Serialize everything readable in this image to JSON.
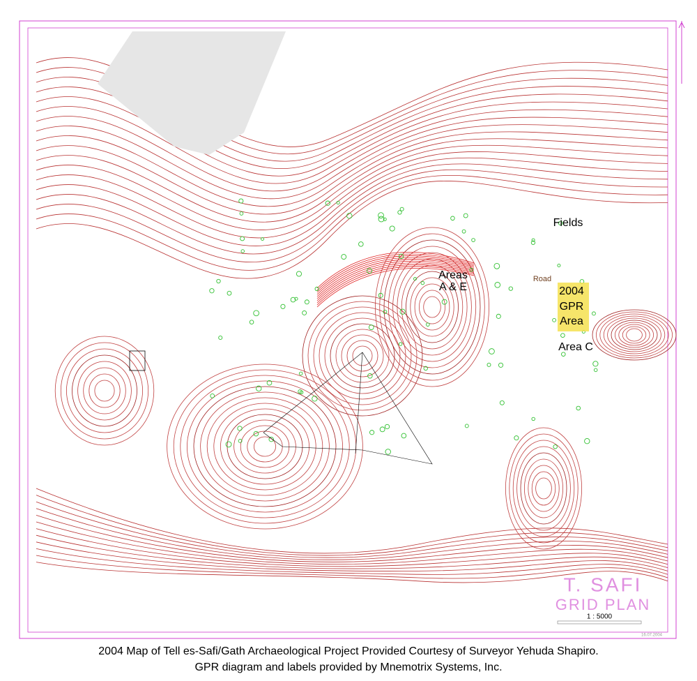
{
  "map": {
    "labels": {
      "fields": "Fields",
      "road": "Road",
      "areas_ae": [
        "Areas",
        "A & E"
      ],
      "gpr_area": [
        "2004",
        "GPR",
        "Area"
      ],
      "area_c": "Area C"
    },
    "title_block": {
      "title": "T. SAFI",
      "subtitle": "GRID PLAN",
      "scale": "1 : 5000",
      "date": "16.07.2004"
    }
  },
  "caption": [
    "2004 Map of Tell es-Safi/Gath Archaeological Project Provided Courtesy of Surveyor Yehuda Shapiro.",
    "GPR diagram and labels provided by Mnemotrix Systems, Inc."
  ]
}
